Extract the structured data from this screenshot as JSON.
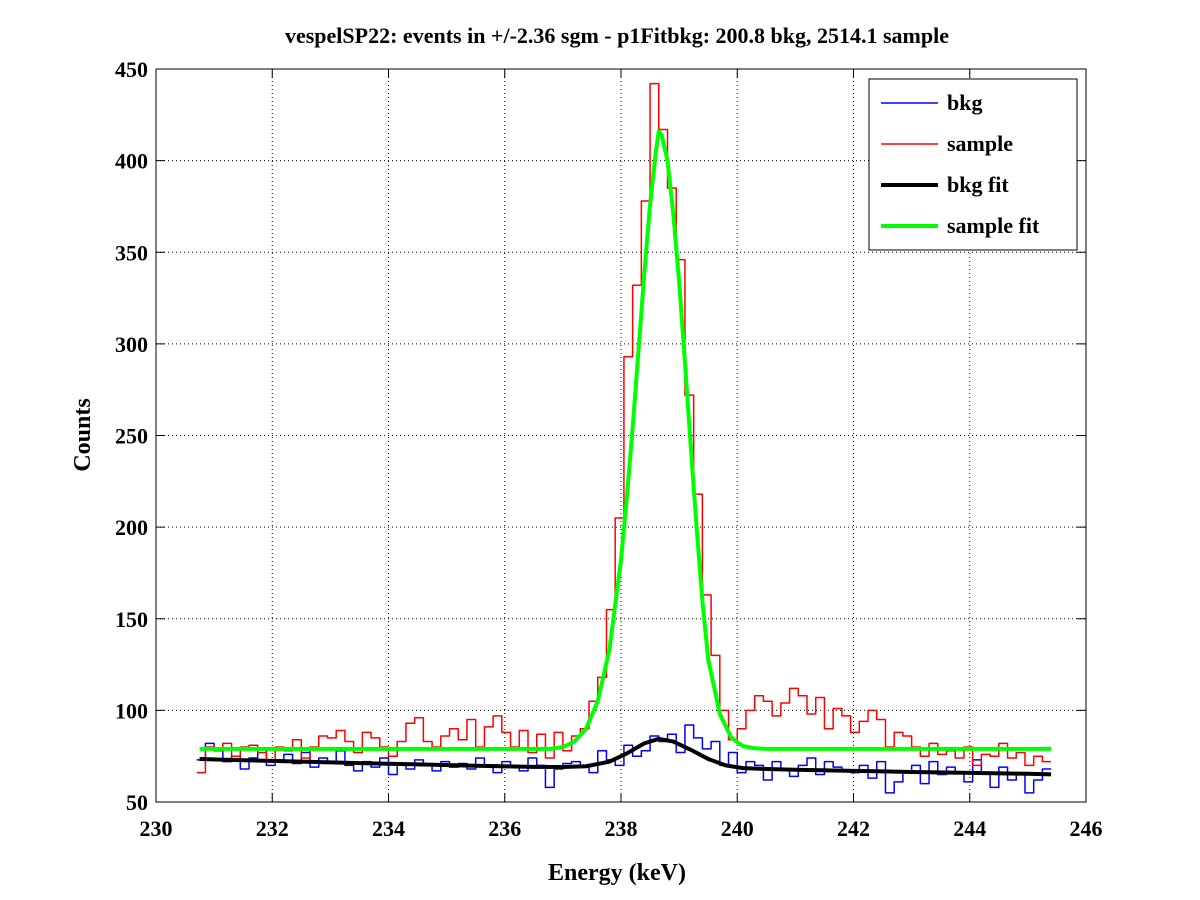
{
  "chart_data": {
    "type": "line",
    "title": "vespelSP22: events in +/-2.36 sgm - p1Fitbkg: 200.8 bkg, 2514.1 sample",
    "xlabel": "Energy (keV)",
    "ylabel": "Counts",
    "xlim": [
      230,
      246
    ],
    "ylim": [
      50,
      450
    ],
    "xticks": [
      230,
      232,
      234,
      236,
      238,
      240,
      242,
      244,
      246
    ],
    "yticks": [
      50,
      100,
      150,
      200,
      250,
      300,
      350,
      400,
      450
    ],
    "grid": true,
    "legend_position": "top-right",
    "series": [
      {
        "name": "bkg",
        "style": "stairs",
        "color": "#0000ff",
        "x": [
          230.7,
          230.85,
          231.0,
          231.15,
          231.3,
          231.45,
          231.6,
          231.75,
          231.9,
          232.05,
          232.2,
          232.35,
          232.5,
          232.65,
          232.8,
          232.95,
          233.1,
          233.25,
          233.4,
          233.55,
          233.7,
          233.85,
          234.0,
          234.15,
          234.3,
          234.45,
          234.6,
          234.75,
          234.9,
          235.05,
          235.2,
          235.35,
          235.5,
          235.65,
          235.8,
          235.95,
          236.1,
          236.25,
          236.4,
          236.55,
          236.7,
          236.85,
          237.0,
          237.15,
          237.3,
          237.45,
          237.6,
          237.75,
          237.9,
          238.05,
          238.2,
          238.35,
          238.5,
          238.65,
          238.8,
          238.95,
          239.1,
          239.25,
          239.4,
          239.55,
          239.7,
          239.85,
          240.0,
          240.15,
          240.3,
          240.45,
          240.6,
          240.75,
          240.9,
          241.05,
          241.2,
          241.35,
          241.5,
          241.65,
          241.8,
          241.95,
          242.1,
          242.25,
          242.4,
          242.55,
          242.7,
          242.85,
          243.0,
          243.15,
          243.3,
          243.45,
          243.6,
          243.75,
          243.9,
          244.05,
          244.2,
          244.35,
          244.5,
          244.65,
          244.8,
          244.95,
          245.1,
          245.25
        ],
        "y": [
          73,
          82,
          78,
          72,
          75,
          68,
          74,
          79,
          70,
          73,
          76,
          71,
          77,
          69,
          74,
          72,
          78,
          70,
          67,
          72,
          69,
          74,
          65,
          71,
          68,
          73,
          70,
          67,
          72,
          69,
          71,
          68,
          74,
          70,
          66,
          72,
          69,
          67,
          74,
          70,
          58,
          68,
          71,
          72,
          70,
          66,
          78,
          73,
          70,
          81,
          75,
          78,
          86,
          83,
          87,
          77,
          92,
          85,
          79,
          83,
          70,
          77,
          66,
          72,
          70,
          62,
          72,
          68,
          64,
          70,
          74,
          65,
          72,
          69,
          67,
          66,
          70,
          63,
          72,
          55,
          61,
          67,
          70,
          60,
          72,
          65,
          69,
          66,
          61,
          73,
          66,
          58,
          69,
          62,
          66,
          55,
          62,
          68
        ]
      },
      {
        "name": "sample",
        "style": "stairs",
        "color": "#ff0000",
        "x": [
          230.7,
          230.85,
          231.0,
          231.15,
          231.3,
          231.45,
          231.6,
          231.75,
          231.9,
          232.05,
          232.2,
          232.35,
          232.5,
          232.65,
          232.8,
          232.95,
          233.1,
          233.25,
          233.4,
          233.55,
          233.7,
          233.85,
          234.0,
          234.15,
          234.3,
          234.45,
          234.6,
          234.75,
          234.9,
          235.05,
          235.2,
          235.35,
          235.5,
          235.65,
          235.8,
          235.95,
          236.1,
          236.25,
          236.4,
          236.55,
          236.7,
          236.85,
          237.0,
          237.15,
          237.3,
          237.45,
          237.6,
          237.75,
          237.9,
          238.05,
          238.2,
          238.35,
          238.5,
          238.65,
          238.8,
          238.95,
          239.1,
          239.25,
          239.4,
          239.55,
          239.7,
          239.85,
          240.0,
          240.15,
          240.3,
          240.45,
          240.6,
          240.75,
          240.9,
          241.05,
          241.2,
          241.35,
          241.5,
          241.65,
          241.8,
          241.95,
          242.1,
          242.25,
          242.4,
          242.55,
          242.7,
          242.85,
          243.0,
          243.15,
          243.3,
          243.45,
          243.6,
          243.75,
          243.9,
          244.05,
          244.2,
          244.35,
          244.5,
          244.65,
          244.8,
          244.95,
          245.1,
          245.25
        ],
        "y": [
          66,
          80,
          78,
          82,
          75,
          80,
          81,
          77,
          72,
          80,
          78,
          84,
          74,
          80,
          86,
          85,
          89,
          83,
          77,
          88,
          85,
          80,
          75,
          83,
          93,
          96,
          83,
          80,
          86,
          90,
          84,
          95,
          80,
          91,
          97,
          88,
          80,
          89,
          77,
          87,
          74,
          88,
          78,
          86,
          90,
          105,
          118,
          155,
          205,
          293,
          332,
          378,
          442,
          417,
          385,
          346,
          272,
          218,
          163,
          130,
          100,
          84,
          90,
          100,
          108,
          105,
          97,
          104,
          112,
          108,
          98,
          107,
          90,
          101,
          97,
          88,
          94,
          100,
          95,
          80,
          88,
          86,
          80,
          75,
          82,
          76,
          78,
          74,
          80,
          70,
          76,
          75,
          82,
          74,
          77,
          70,
          75,
          72
        ]
      },
      {
        "name": "bkg fit",
        "style": "line",
        "color": "#000000",
        "x": [
          230.75,
          231.5,
          232.5,
          233.5,
          234.5,
          235.5,
          236.5,
          237.0,
          237.4,
          237.8,
          238.1,
          238.4,
          238.65,
          238.9,
          239.2,
          239.5,
          239.8,
          240.1,
          240.5,
          241.0,
          242.0,
          243.0,
          244.0,
          245.0,
          245.4
        ],
        "y": [
          73.5,
          72.8,
          72.0,
          71.2,
          70.5,
          69.8,
          69.2,
          69.1,
          69.5,
          72.0,
          76.5,
          82.0,
          84.5,
          83.0,
          78.5,
          73.5,
          70.0,
          68.5,
          68.0,
          67.6,
          67.0,
          66.4,
          65.9,
          65.4,
          65.1
        ]
      },
      {
        "name": "sample fit",
        "style": "line",
        "color": "#00ff00",
        "x": [
          230.75,
          232.0,
          233.0,
          234.0,
          235.0,
          236.0,
          236.8,
          237.0,
          237.2,
          237.4,
          237.6,
          237.8,
          238.0,
          238.1,
          238.2,
          238.3,
          238.4,
          238.5,
          238.6,
          238.65,
          238.7,
          238.8,
          238.9,
          239.0,
          239.1,
          239.2,
          239.3,
          239.4,
          239.5,
          239.7,
          239.9,
          240.1,
          240.3,
          240.5,
          241.0,
          242.0,
          243.0,
          244.0,
          245.0,
          245.4
        ],
        "y": [
          79,
          79,
          79,
          79,
          79,
          79,
          79,
          80,
          83,
          90,
          105,
          133,
          182,
          216,
          254,
          296,
          338,
          376,
          405,
          416,
          414,
          400,
          371,
          334,
          290,
          244,
          200,
          160,
          128,
          98,
          85,
          80.5,
          79.3,
          79,
          79,
          79,
          79,
          79,
          79,
          79
        ]
      }
    ]
  }
}
